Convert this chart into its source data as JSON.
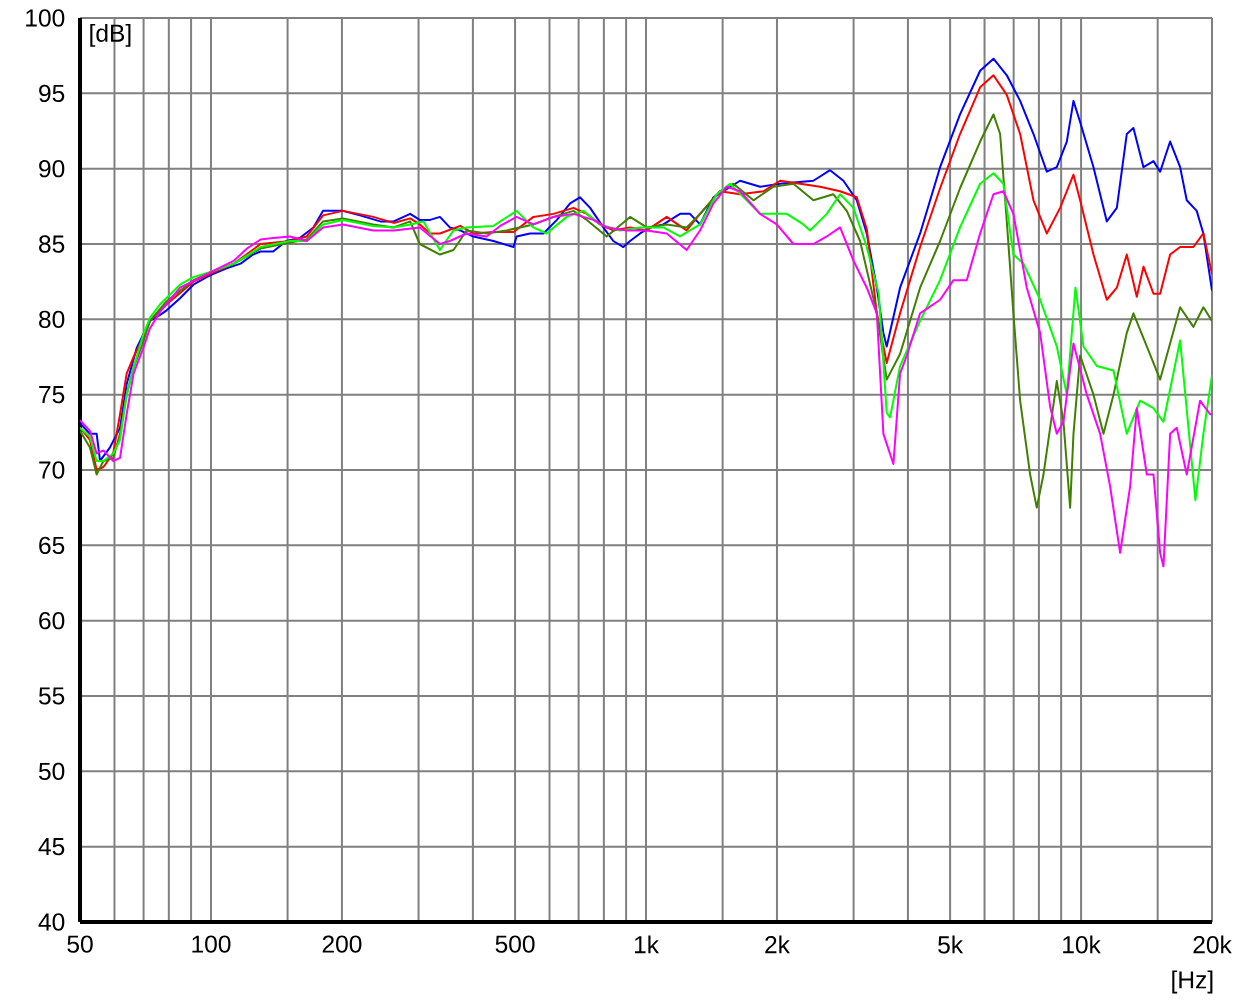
{
  "chart_data": {
    "type": "line",
    "xlabel": "[Hz]",
    "ylabel": "[dB]",
    "log": "x",
    "xlim": [
      50,
      20000
    ],
    "ylim": [
      40,
      100
    ],
    "grid": true,
    "line_style": "solid",
    "xticks": [
      50,
      {
        "value": 60,
        "label": null
      },
      {
        "value": 70,
        "label": null
      },
      {
        "value": 80,
        "label": null
      },
      {
        "value": 90,
        "label": null
      },
      100,
      {
        "value": 150,
        "label": null
      },
      200,
      {
        "value": 300,
        "label": null
      },
      {
        "value": 400,
        "label": null
      },
      500,
      {
        "value": 600,
        "label": null
      },
      {
        "value": 700,
        "label": null
      },
      {
        "value": 800,
        "label": null
      },
      {
        "value": 900,
        "label": null
      },
      {
        "value": 1000,
        "label": "1k"
      },
      {
        "value": 1500,
        "label": null
      },
      {
        "value": 2000,
        "label": "2k"
      },
      {
        "value": 3000,
        "label": null
      },
      {
        "value": 4000,
        "label": null
      },
      {
        "value": 5000,
        "label": "5k"
      },
      {
        "value": 6000,
        "label": null
      },
      {
        "value": 7000,
        "label": null
      },
      {
        "value": 8000,
        "label": null
      },
      {
        "value": 9000,
        "label": null
      },
      {
        "value": 10000,
        "label": "10k"
      },
      {
        "value": 15000,
        "label": null
      },
      {
        "value": 20000,
        "label": "20k"
      }
    ],
    "yticks": [
      40,
      45,
      50,
      55,
      60,
      65,
      70,
      75,
      80,
      85,
      90,
      95,
      100
    ],
    "series": [
      {
        "color": "#0000ff",
        "x": [
          50,
          52.7,
          54.6,
          55.6,
          58.6,
          61.8,
          64,
          67.5,
          69.9,
          72.4,
          76.4,
          79.1,
          84.9,
          91.1,
          97.7,
          101,
          109,
          117,
          125,
          130,
          139,
          149,
          160,
          172,
          181,
          201,
          220,
          245,
          263,
          287,
          302,
          319,
          336,
          354,
          374,
          401,
          446,
          496,
          504,
          541,
          581,
          624,
          669,
          705,
          744,
          798,
          841,
          887,
          919,
          969,
          1021,
          1096,
          1197,
          1262,
          1331,
          1429,
          1645,
          1829,
          2033,
          2425,
          2649,
          2843,
          3051,
          3217,
          3393,
          3513,
          3575,
          3837,
          4266,
          4742,
          5270,
          5861,
          6290,
          6750,
          7244,
          7775,
          8341,
          8795,
          9273,
          9606,
          9950,
          10680,
          11460,
          12084,
          12737,
          13195,
          13914,
          14672,
          15197,
          16022,
          16893,
          17497,
          18444,
          19108,
          20000
        ],
        "values": [
          73.1,
          72.4,
          72.4,
          70.6,
          71.5,
          72.8,
          75.7,
          78.1,
          79.0,
          79.9,
          80.3,
          80.6,
          81.4,
          82.3,
          82.8,
          83.0,
          83.4,
          83.7,
          84.3,
          84.5,
          84.5,
          85.2,
          85.4,
          86.1,
          87.2,
          87.2,
          86.9,
          86.5,
          86.5,
          87.0,
          86.6,
          86.6,
          86.8,
          86.1,
          85.9,
          85.5,
          85.2,
          84.8,
          85.5,
          85.7,
          85.7,
          86.6,
          87.7,
          88.1,
          87.4,
          86.1,
          85.2,
          84.8,
          85.2,
          85.7,
          86.1,
          86.3,
          87.0,
          87.0,
          86.3,
          88.1,
          89.2,
          88.8,
          89.0,
          89.2,
          89.9,
          89.2,
          87.9,
          85.7,
          82.1,
          79.1,
          78.2,
          82.1,
          85.7,
          90.1,
          93.6,
          96.5,
          97.3,
          96.2,
          94.5,
          92.3,
          89.8,
          90.1,
          91.8,
          94.5,
          93.1,
          90.1,
          86.5,
          87.4,
          92.3,
          92.7,
          90.1,
          90.5,
          89.8,
          91.8,
          90.1,
          87.9,
          87.2,
          85.7,
          81.9
        ]
      },
      {
        "color": "#ff0000",
        "x": [
          50,
          52.7,
          54.6,
          56.6,
          59.6,
          61.8,
          64,
          66.4,
          69.9,
          72.4,
          79.1,
          91.1,
          101,
          113,
          130,
          152,
          166,
          181,
          201,
          236,
          263,
          287,
          302,
          319,
          336,
          374,
          401,
          446,
          496,
          551,
          613,
          681,
          731,
          784,
          841,
          919,
          1004,
          1116,
          1240,
          1331,
          1480,
          1645,
          1862,
          2033,
          2260,
          2512,
          2793,
          3051,
          3217,
          3393,
          3575,
          3837,
          4266,
          4742,
          5270,
          5861,
          6290,
          6750,
          7244,
          7775,
          8341,
          8951,
          9606,
          9950,
          10680,
          11460,
          12084,
          12737,
          13431,
          13914,
          14672,
          15197,
          16022,
          16893,
          18126,
          19108,
          20000
        ],
        "values": [
          72.8,
          72.0,
          70.0,
          70.2,
          71.1,
          73.7,
          76.4,
          77.5,
          78.8,
          79.9,
          81.0,
          82.5,
          83.1,
          83.7,
          85.0,
          85.2,
          85.5,
          86.9,
          87.2,
          86.8,
          86.4,
          86.7,
          86.3,
          85.7,
          85.7,
          86.2,
          85.7,
          85.8,
          85.8,
          86.8,
          87.0,
          87.4,
          87.0,
          86.3,
          85.9,
          86.1,
          85.9,
          86.8,
          85.9,
          87.0,
          88.5,
          88.3,
          88.5,
          89.2,
          89.0,
          88.8,
          88.5,
          88.1,
          86.0,
          80.4,
          77.1,
          80.4,
          84.8,
          88.7,
          92.3,
          95.4,
          96.2,
          94.9,
          92.3,
          87.9,
          85.7,
          87.4,
          89.6,
          87.9,
          84.3,
          81.3,
          82.1,
          84.3,
          81.5,
          83.5,
          81.7,
          81.7,
          84.3,
          84.8,
          84.8,
          85.7,
          83.0
        ]
      },
      {
        "color": "#408000",
        "x": [
          50,
          52.7,
          54.6,
          56.6,
          59.6,
          61.8,
          64,
          66.4,
          69.9,
          72.4,
          79.1,
          91.1,
          101,
          113,
          130,
          152,
          166,
          181,
          201,
          236,
          263,
          287,
          302,
          336,
          361,
          387,
          430,
          478,
          551,
          613,
          681,
          731,
          812,
          919,
          1004,
          1116,
          1240,
          1331,
          1480,
          1588,
          1766,
          1963,
          2182,
          2425,
          2696,
          2894,
          3105,
          3393,
          3575,
          3837,
          4266,
          4742,
          5270,
          5861,
          6290,
          6516,
          6750,
          6990,
          7244,
          7638,
          7912,
          8196,
          8795,
          9110,
          9438,
          9606,
          9950,
          10680,
          11260,
          11872,
          12737,
          13195,
          14163,
          15197,
          16893,
          18126,
          19108,
          20000
        ],
        "values": [
          72.6,
          71.5,
          69.7,
          70.6,
          70.8,
          72.4,
          75.0,
          76.8,
          78.5,
          79.9,
          81.2,
          82.6,
          83.2,
          83.7,
          84.7,
          85.1,
          85.3,
          86.5,
          86.7,
          86.3,
          86.1,
          86.5,
          85.0,
          84.3,
          84.6,
          85.9,
          85.7,
          85.9,
          86.3,
          86.8,
          87.2,
          86.6,
          85.5,
          86.8,
          86.1,
          86.3,
          86.1,
          87.0,
          88.5,
          89.0,
          87.9,
          88.8,
          89.0,
          87.9,
          88.3,
          87.2,
          85.2,
          80.4,
          76.0,
          77.7,
          82.1,
          85.2,
          88.7,
          91.8,
          93.6,
          92.3,
          86.5,
          80.4,
          74.6,
          69.7,
          67.5,
          69.7,
          75.9,
          73.2,
          67.5,
          72.4,
          77.6,
          75.0,
          72.4,
          75.0,
          79.1,
          80.4,
          78.2,
          76.0,
          80.8,
          79.5,
          80.8,
          79.9
        ]
      },
      {
        "color": "#00ff00",
        "x": [
          50,
          52.7,
          54.6,
          56.6,
          59.6,
          61.8,
          64,
          66.4,
          69.9,
          72.4,
          76.4,
          84.9,
          91.1,
          101,
          113,
          130,
          152,
          166,
          181,
          201,
          236,
          263,
          287,
          308,
          336,
          361,
          387,
          446,
          504,
          551,
          591,
          657,
          718,
          784,
          872,
          969,
          1096,
          1197,
          1331,
          1454,
          1560,
          1704,
          1829,
          2107,
          2300,
          2383,
          2603,
          2793,
          2998,
          3217,
          3428,
          3575,
          3640,
          3837,
          4266,
          4742,
          5270,
          5861,
          6290,
          6630,
          6990,
          7374,
          8052,
          8795,
          9273,
          9708,
          10128,
          10870,
          11872,
          12737,
          13670,
          14672,
          15468,
          16893,
          18318,
          19108,
          20000
        ],
        "values": [
          72.8,
          72.2,
          70.6,
          70.6,
          71.1,
          72.0,
          75.0,
          76.8,
          79.0,
          80.1,
          81.0,
          82.3,
          82.8,
          83.2,
          83.7,
          84.8,
          85.2,
          85.2,
          86.3,
          86.6,
          86.2,
          86.1,
          86.3,
          86.5,
          84.6,
          85.9,
          86.1,
          86.2,
          87.2,
          86.1,
          85.7,
          86.8,
          87.2,
          86.3,
          85.9,
          86.1,
          86.1,
          85.5,
          86.3,
          88.3,
          89.0,
          87.9,
          87.0,
          87.0,
          86.3,
          85.9,
          87.0,
          88.3,
          87.4,
          84.8,
          81.7,
          73.8,
          73.5,
          76.9,
          79.9,
          82.6,
          86.1,
          89.0,
          89.7,
          89.0,
          84.3,
          83.7,
          81.3,
          78.2,
          75.0,
          82.1,
          78.2,
          76.9,
          76.6,
          72.4,
          74.6,
          74.1,
          73.2,
          78.6,
          68.0,
          72.4,
          76.3
        ]
      },
      {
        "color": "#ff00ff",
        "x": [
          50,
          52.7,
          54.6,
          56.6,
          59.6,
          61.8,
          64,
          66.4,
          69.9,
          72.4,
          76.4,
          84.9,
          101,
          113,
          121,
          130,
          139,
          152,
          166,
          181,
          201,
          236,
          263,
          302,
          336,
          354,
          387,
          430,
          462,
          504,
          551,
          613,
          681,
          757,
          812,
          903,
          1004,
          1116,
          1240,
          1331,
          1429,
          1533,
          1645,
          1829,
          1998,
          2182,
          2425,
          2603,
          2793,
          2998,
          3217,
          3393,
          3513,
          3704,
          3837,
          3976,
          4266,
          4742,
          5089,
          5460,
          5861,
          6290,
          6630,
          6990,
          7504,
          8052,
          8490,
          8795,
          9110,
          9606,
          10309,
          11062,
          11664,
          12296,
          12964,
          13431,
          14163,
          14672,
          15197,
          15468,
          16022,
          16596,
          17497,
          18773,
          19799,
          20000
        ],
        "values": [
          73.3,
          72.6,
          71.1,
          71.3,
          70.6,
          70.8,
          73.7,
          76.4,
          78.1,
          79.4,
          80.5,
          82.1,
          83.2,
          83.9,
          84.7,
          85.3,
          85.4,
          85.5,
          85.2,
          86.1,
          86.3,
          85.9,
          85.9,
          86.1,
          85.0,
          85.2,
          85.7,
          85.5,
          86.2,
          86.8,
          86.3,
          86.8,
          87.0,
          86.6,
          86.1,
          85.9,
          85.9,
          85.7,
          84.6,
          85.9,
          87.7,
          88.8,
          88.5,
          87.0,
          86.3,
          85.0,
          85.0,
          85.5,
          86.1,
          83.9,
          82.1,
          80.4,
          72.4,
          70.4,
          76.4,
          77.6,
          80.4,
          81.3,
          82.6,
          82.6,
          85.7,
          88.3,
          88.5,
          87.0,
          82.1,
          79.1,
          74.2,
          72.4,
          73.2,
          78.4,
          75.0,
          72.4,
          68.9,
          64.5,
          68.9,
          74.1,
          69.7,
          69.7,
          64.5,
          63.6,
          72.4,
          72.8,
          69.7,
          74.6,
          73.7,
          73.7
        ]
      }
    ]
  }
}
